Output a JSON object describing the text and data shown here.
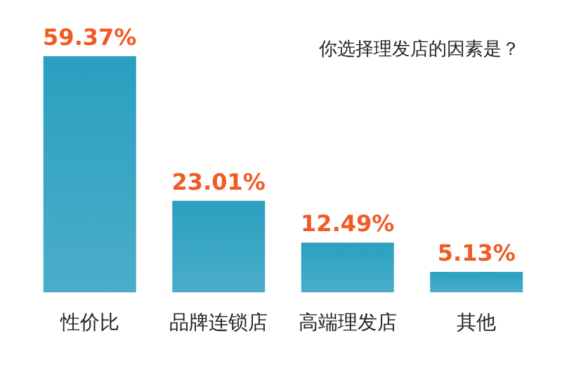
{
  "chart_data": {
    "type": "bar",
    "title": "你选择理发店的因素是？",
    "categories": [
      "性价比",
      "品牌连锁店",
      "高端理发店",
      "其他"
    ],
    "values": [
      59.37,
      23.01,
      12.49,
      5.13
    ],
    "value_labels": [
      "59.37%",
      "23.01%",
      "12.49%",
      "5.13%"
    ],
    "color": "#2a9fc0"
  }
}
